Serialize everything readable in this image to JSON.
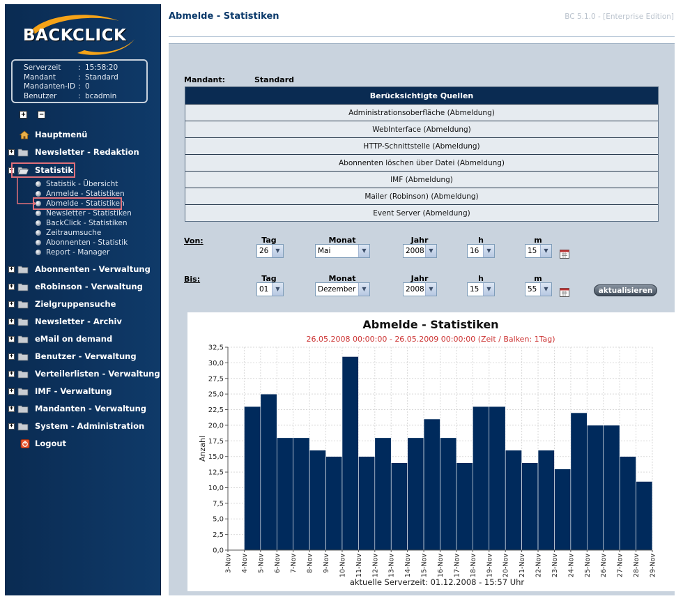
{
  "sidebar": {
    "logo_text": "BACKCLICK",
    "info": [
      {
        "label": "Serverzeit",
        "value": "15:58:20"
      },
      {
        "label": "Mandant",
        "value": "Standard"
      },
      {
        "label": "Mandanten-ID",
        "value": "0"
      },
      {
        "label": "Benutzer",
        "value": "bcadmin"
      }
    ],
    "expand_all": "+",
    "collapse_all": "−",
    "menu": [
      {
        "label": "Hauptmenü",
        "icon": "home-icon"
      },
      {
        "label": "Newsletter - Redaktion",
        "icon": "folder-icon"
      },
      {
        "label": "Statistik",
        "icon": "folder-open-icon"
      },
      {
        "label": "Abonnenten - Verwaltung",
        "icon": "folder-icon"
      },
      {
        "label": "eRobinson - Verwaltung",
        "icon": "folder-icon"
      },
      {
        "label": "Zielgruppensuche",
        "icon": "folder-icon"
      },
      {
        "label": "Newsletter - Archiv",
        "icon": "folder-icon"
      },
      {
        "label": "eMail on demand",
        "icon": "folder-icon"
      },
      {
        "label": "Benutzer - Verwaltung",
        "icon": "folder-icon"
      },
      {
        "label": "Verteilerlisten - Verwaltung",
        "icon": "folder-icon"
      },
      {
        "label": "IMF - Verwaltung",
        "icon": "folder-icon"
      },
      {
        "label": "Mandanten - Verwaltung",
        "icon": "folder-icon"
      },
      {
        "label": "System - Administration",
        "icon": "folder-icon"
      },
      {
        "label": "Logout",
        "icon": "logout-icon"
      }
    ],
    "statistik_sub": [
      "Statistik - Übersicht",
      "Anmelde - Statistiken",
      "Abmelde - Statistiken",
      "Newsletter - Statistiken",
      "BackClick - Statistiken",
      "Zeitraumsuche",
      "Abonnenten - Statistik",
      "Report - Manager"
    ]
  },
  "header": {
    "title": "Abmelde - Statistiken",
    "version": "BC 5.1.0 - [Enterprise Edition]"
  },
  "mandant": {
    "label": "Mandant:",
    "value": "Standard"
  },
  "quellen": {
    "heading": "Berücksichtigte Quellen",
    "rows": [
      "Administrationsoberfläche (Abmeldung)",
      "WebInterface (Abmeldung)",
      "HTTP-Schnittstelle (Abmeldung)",
      "Abonnenten löschen über Datei (Abmeldung)",
      "IMF (Abmeldung)",
      "Mailer (Robinson) (Abmeldung)",
      "Event Server (Abmeldung)"
    ]
  },
  "date_form": {
    "columns": {
      "tag": "Tag",
      "monat": "Monat",
      "jahr": "Jahr",
      "h": "h",
      "m": "m"
    },
    "von": {
      "label": "Von:",
      "tag": "26",
      "monat": "Mai",
      "jahr": "2008",
      "h": "16",
      "m": "15"
    },
    "bis": {
      "label": "Bis:",
      "tag": "01",
      "monat": "Dezember",
      "jahr": "2008",
      "h": "15",
      "m": "55"
    },
    "refresh_label": "aktualisieren"
  },
  "chart_data": {
    "type": "bar",
    "title": "Abmelde - Statistiken",
    "subtitle": "26.05.2008 00:00:00 - 26.05.2009 00:00:00  (Zeit / Balken: 1Tag)",
    "ylabel": "Anzahl",
    "footer": "aktuelle Serverzeit: 01.12.2008 - 15:57 Uhr",
    "ylim": [
      0,
      32.5
    ],
    "yticks": [
      "0,0",
      "2,5",
      "5,0",
      "7,5",
      "10,0",
      "12,5",
      "15,0",
      "17,5",
      "20,0",
      "22,5",
      "25,0",
      "27,5",
      "30,0",
      "32,5"
    ],
    "categories": [
      "3-Nov",
      "4-Nov",
      "5-Nov",
      "6-Nov",
      "7-Nov",
      "8-Nov",
      "9-Nov",
      "10-Nov",
      "11-Nov",
      "12-Nov",
      "13-Nov",
      "14-Nov",
      "15-Nov",
      "16-Nov",
      "17-Nov",
      "18-Nov",
      "19-Nov",
      "20-Nov",
      "21-Nov",
      "22-Nov",
      "23-Nov",
      "24-Nov",
      "25-Nov",
      "26-Nov",
      "27-Nov",
      "28-Nov",
      "29-Nov"
    ],
    "values": [
      0,
      23,
      25,
      18,
      18,
      16,
      15,
      31,
      15,
      18,
      14,
      18,
      21,
      18,
      14,
      23,
      23,
      16,
      14,
      16,
      13,
      22,
      20,
      20,
      15,
      11,
      0
    ],
    "grid": true,
    "bar_color": "#002a5c",
    "subtitle_color": "#cc3333"
  }
}
